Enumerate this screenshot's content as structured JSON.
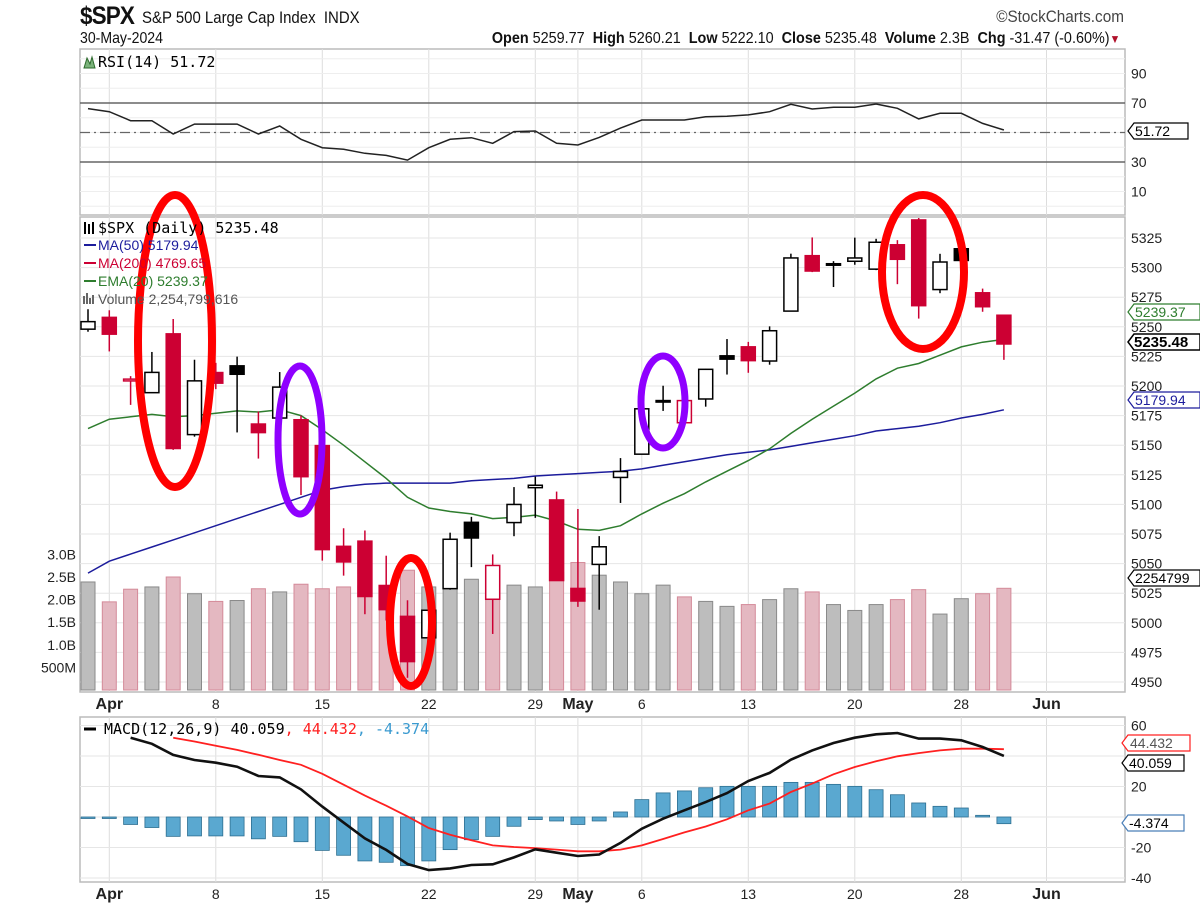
{
  "header": {
    "symbol": "$SPX",
    "name": "S&P 500 Large Cap Index",
    "exchange": "INDX",
    "copyright": "©StockCharts.com",
    "date": "30-May-2024",
    "open_label": "Open",
    "open": "5259.77",
    "high_label": "High",
    "high": "5260.21",
    "low_label": "Low",
    "low": "5222.10",
    "close_label": "Close",
    "close": "5235.48",
    "volume_label": "Volume",
    "volume": "2.3B",
    "chg_label": "Chg",
    "chg": "-31.47 (-0.60%)"
  },
  "rsi_panel": {
    "legend": "RSI(14) 51.72",
    "tag": "51.72"
  },
  "price_panel": {
    "legend_main": "$SPX (Daily) 5235.48",
    "legend_ma50": "MA(50) 5179.94",
    "legend_ma200": "MA(200) 4769.65",
    "legend_ema20": "EMA(20) 5239.37",
    "legend_volume": "Volume 2,254,799,616",
    "tag_close": "5235.48",
    "tag_ema": "5239.37",
    "tag_ma50": "5179.94",
    "tag_volume": "2254799"
  },
  "macd_panel": {
    "legend_name": "MACD(12,26,9)",
    "macd": "40.059",
    "signal": "44.432",
    "hist": "-4.374",
    "tag_signal": "44.432",
    "tag_macd": "40.059",
    "tag_hist": "-4.374"
  },
  "colors": {
    "up": "#000000",
    "down": "#cc0033",
    "ma50": "#1c1c9c",
    "ema20": "#2e7d2e",
    "signal": "#ff2020",
    "hist": "#5aa8d0",
    "annotation_red": "#ff0000",
    "annotation_purple": "#8f00ff"
  },
  "chart_data": {
    "type": "candlestick",
    "title": "$SPX S&P 500 Large Cap Index INDX",
    "dates": [
      "Mar 28",
      "Apr 1",
      "Apr 2",
      "Apr 3",
      "Apr 4",
      "Apr 5",
      "Apr 8",
      "Apr 9",
      "Apr 10",
      "Apr 11",
      "Apr 12",
      "Apr 15",
      "Apr 16",
      "Apr 17",
      "Apr 18",
      "Apr 19",
      "Apr 22",
      "Apr 23",
      "Apr 24",
      "Apr 25",
      "Apr 26",
      "Apr 29",
      "Apr 30",
      "May 1",
      "May 2",
      "May 3",
      "May 6",
      "May 7",
      "May 8",
      "May 9",
      "May 10",
      "May 13",
      "May 14",
      "May 15",
      "May 16",
      "May 17",
      "May 20",
      "May 21",
      "May 22",
      "May 23",
      "May 24",
      "May 28",
      "May 29",
      "May 30"
    ],
    "open": [
      5248.0,
      5257.97,
      5204.29,
      5194.37,
      5244.05,
      5158.95,
      5211.37,
      5217.03,
      5167.88,
      5172.95,
      5171.51,
      5149.67,
      5064.59,
      5068.97,
      5031.52,
      5005.44,
      4987.33,
      5028.85,
      5084.86,
      5019.88,
      5084.65,
      5114.13,
      5103.78,
      5029.03,
      5049.32,
      5122.78,
      5142.42,
      5187.2,
      5168.98,
      5189.03,
      5225.49,
      5233.08,
      5221.1,
      5263.26,
      5310.07,
      5303.1,
      5305.35,
      5298.69,
      5319.28,
      5340.26,
      5281.45,
      5315.91,
      5278.73,
      5259.77
    ],
    "high": [
      5264.85,
      5263.95,
      5208.34,
      5228.75,
      5256.59,
      5222.18,
      5219.57,
      5224.81,
      5178.43,
      5211.78,
      5175.03,
      5168.43,
      5079.84,
      5077.96,
      5056.66,
      5019.02,
      5038.84,
      5076.12,
      5089.48,
      5057.75,
      5114.62,
      5123.49,
      5110.83,
      5096.12,
      5073.21,
      5139.12,
      5181.0,
      5200.23,
      5191.95,
      5214.42,
      5239.66,
      5237.26,
      5250.37,
      5311.76,
      5325.49,
      5305.45,
      5325.32,
      5324.32,
      5323.18,
      5341.88,
      5311.65,
      5315.91,
      5282.27,
      5260.21
    ],
    "low": [
      5245.82,
      5229.2,
      5184.05,
      5194.37,
      5146.06,
      5157.21,
      5197.35,
      5160.78,
      5138.7,
      5138.77,
      5107.94,
      5052.47,
      5039.83,
      5007.25,
      5001.89,
      4953.56,
      4969.4,
      5027.96,
      5047.02,
      4990.58,
      5073.14,
      5088.65,
      5035.31,
      5013.45,
      5011.05,
      5101.22,
      5142.42,
      5178.96,
      5165.86,
      5182.54,
      5209.68,
      5211.16,
      5217.98,
      5263.26,
      5296.19,
      5283.59,
      5302.4,
      5297.87,
      5286.01,
      5256.93,
      5278.39,
      5280.89,
      5262.7,
      5222.1
    ],
    "close": [
      5254.35,
      5243.77,
      5205.81,
      5211.49,
      5147.21,
      5204.34,
      5202.39,
      5209.91,
      5160.64,
      5199.06,
      5123.41,
      5061.82,
      5051.41,
      5022.21,
      5011.12,
      4967.23,
      5010.6,
      5070.55,
      5071.63,
      5048.42,
      5099.96,
      5116.17,
      5035.69,
      5018.39,
      5064.2,
      5127.79,
      5180.74,
      5187.7,
      5187.67,
      5214.08,
      5222.68,
      5221.42,
      5246.68,
      5308.15,
      5297.1,
      5303.27,
      5308.13,
      5321.41,
      5307.01,
      5267.84,
      5304.72,
      5306.04,
      5266.95,
      5235.48
    ],
    "volume_billions": [
      2.39,
      1.95,
      2.23,
      2.28,
      2.5,
      2.13,
      1.96,
      1.98,
      2.24,
      2.17,
      2.34,
      2.24,
      2.28,
      2.3,
      2.2,
      2.65,
      2.28,
      2.4,
      2.45,
      2.67,
      2.32,
      2.28,
      2.6,
      2.82,
      2.54,
      2.39,
      2.13,
      2.32,
      2.06,
      1.96,
      1.85,
      1.89,
      2.0,
      2.24,
      2.17,
      1.89,
      1.76,
      1.89,
      2.0,
      2.22,
      1.68,
      2.02,
      2.13,
      2.25
    ],
    "ma50": [
      5042,
      5052,
      5058,
      5064,
      5070,
      5076,
      5082,
      5088,
      5094,
      5100,
      5106,
      5112,
      5115,
      5117,
      5118,
      5118,
      5118,
      5118,
      5120,
      5121,
      5122,
      5124,
      5125,
      5126,
      5127,
      5128,
      5130,
      5133,
      5136,
      5139,
      5142,
      5144,
      5146,
      5149,
      5152,
      5155,
      5158,
      5162,
      5164,
      5166,
      5169,
      5173,
      5176,
      5179.94
    ],
    "ema20": [
      5164,
      5172,
      5174,
      5176,
      5174,
      5175,
      5177,
      5179,
      5178,
      5180,
      5175,
      5163,
      5150,
      5136,
      5122,
      5106,
      5097,
      5094,
      5092,
      5088,
      5089,
      5091,
      5086,
      5079,
      5078,
      5082,
      5092,
      5101,
      5109,
      5119,
      5128,
      5137,
      5147,
      5160,
      5172,
      5183,
      5194,
      5206,
      5215,
      5219,
      5226,
      5233,
      5237,
      5239.37
    ],
    "rsi": [
      66.2,
      64.1,
      58,
      58,
      49,
      55.7,
      55.7,
      55.7,
      49,
      54.4,
      45.4,
      39.7,
      38.6,
      35.9,
      34.5,
      31.3,
      39.7,
      45.4,
      46.5,
      42.7,
      50.6,
      51,
      42.7,
      41.5,
      46.7,
      53,
      58.5,
      58.5,
      58.5,
      60.7,
      61,
      61.9,
      64.1,
      69.1,
      65.9,
      67.1,
      67.1,
      69.3,
      66.4,
      59.2,
      63,
      63,
      56.2,
      51.72
    ],
    "macd": [
      null,
      null,
      52,
      48,
      40.7,
      37.4,
      35.6,
      33,
      26.9,
      26,
      18.1,
      6.8,
      -3.7,
      -14,
      -21.6,
      -30.8,
      -34.8,
      -33.7,
      -31.5,
      -31,
      -26.5,
      -21.2,
      -23.4,
      -25.6,
      -24.6,
      -17,
      -7.7,
      -1.1,
      4.4,
      9.8,
      15.7,
      23.6,
      28.9,
      37.6,
      43.7,
      48.5,
      52,
      54.2,
      55.1,
      51.4,
      51.4,
      50.3,
      45.9,
      40.059
    ],
    "signal": [
      null,
      null,
      null,
      null,
      52,
      49.5,
      46.7,
      44,
      40.8,
      37.4,
      34.2,
      28.3,
      21.2,
      14,
      7.4,
      0.4,
      -7.2,
      -11.6,
      -15.3,
      -18.6,
      -19.7,
      -20.4,
      -21.4,
      -22.5,
      -22.5,
      -21.4,
      -18.6,
      -14.4,
      -10.1,
      -6.2,
      -1.5,
      4.4,
      8.8,
      16.4,
      21.9,
      28,
      32.8,
      36.5,
      39.8,
      41.9,
      43.7,
      44.8,
      44.8,
      44.432
    ],
    "histogram": [
      -0.3,
      -0.5,
      -4.9,
      -6.9,
      -12.7,
      -12.4,
      -12.4,
      -12.4,
      -14.3,
      -12.7,
      -16.2,
      -21.9,
      -25.1,
      -28.8,
      -29.7,
      -31.9,
      -28.8,
      -21.4,
      -14.9,
      -12.7,
      -6.1,
      -1.7,
      -2.6,
      -4.9,
      -2.6,
      3.3,
      11.4,
      15.8,
      17.1,
      19.2,
      20.1,
      20.1,
      20.1,
      22.7,
      22.7,
      21.4,
      20.1,
      17.9,
      14.6,
      9.2,
      7.0,
      5.9,
      1.1,
      -4.374
    ],
    "x_labels": [
      {
        "label": "Apr",
        "day_index": 1,
        "month": true
      },
      {
        "label": "8",
        "day_index": 6
      },
      {
        "label": "15",
        "day_index": 11
      },
      {
        "label": "22",
        "day_index": 16
      },
      {
        "label": "29",
        "day_index": 21
      },
      {
        "label": "May",
        "day_index": 23,
        "month": true
      },
      {
        "label": "6",
        "day_index": 26
      },
      {
        "label": "13",
        "day_index": 31
      },
      {
        "label": "20",
        "day_index": 36
      },
      {
        "label": "28",
        "day_index": 41
      },
      {
        "label": "Jun",
        "day_index": 45,
        "month": true
      }
    ],
    "price_ticks": [
      "5325",
      "5300",
      "5275",
      "5250",
      "5225",
      "5200",
      "5175",
      "5150",
      "5125",
      "5100",
      "5075",
      "5050",
      "5025",
      "5000",
      "4975",
      "4950"
    ],
    "price_ylim": [
      4940,
      5345
    ],
    "volume_ticks": [
      {
        "label": "3.0B",
        "v": 3.0
      },
      {
        "label": "2.5B",
        "v": 2.5
      },
      {
        "label": "2.0B",
        "v": 2.0
      },
      {
        "label": "1.5B",
        "v": 1.5
      },
      {
        "label": "1.0B",
        "v": 1.0
      },
      {
        "label": "500M",
        "v": 0.5
      }
    ],
    "rsi_ticks": [
      "90",
      "70",
      "30",
      "10"
    ],
    "rsi_levels": [
      70,
      50,
      30
    ],
    "macd_ticks": [
      "60",
      "20",
      "-20",
      "-40"
    ],
    "annotations": [
      {
        "shape": "ellipse",
        "color": "red",
        "around": [
          "Apr 3",
          "Apr 5"
        ]
      },
      {
        "shape": "ellipse",
        "color": "purple",
        "around": [
          "Apr 12"
        ]
      },
      {
        "shape": "ellipse",
        "color": "red",
        "around": [
          "Apr 19"
        ]
      },
      {
        "shape": "ellipse",
        "color": "purple",
        "around": [
          "May 7"
        ]
      },
      {
        "shape": "ellipse",
        "color": "red",
        "around": [
          "May 22",
          "May 24"
        ]
      }
    ],
    "grid": true
  }
}
